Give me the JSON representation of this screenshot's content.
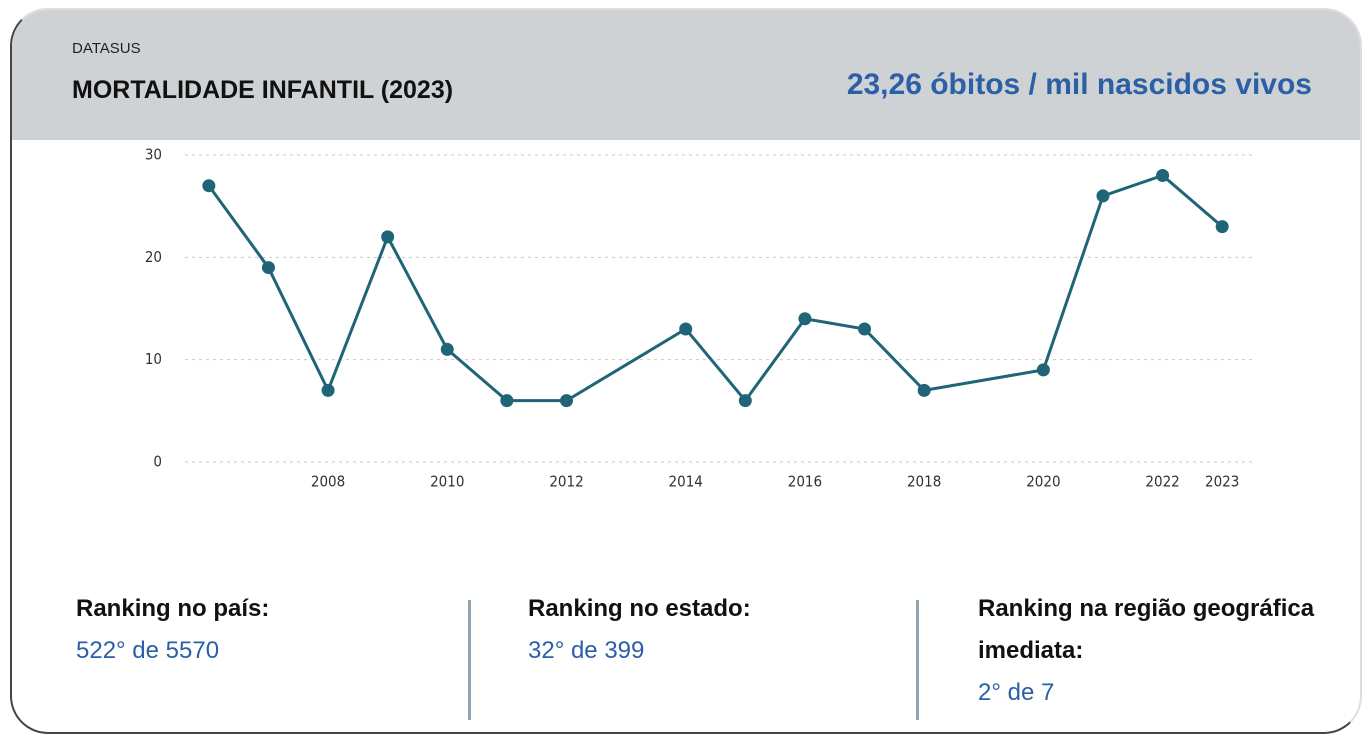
{
  "header": {
    "source": "DATASUS",
    "title": "MORTALIDADE INFANTIL (2023)",
    "headline": "23,26 óbitos / mil nascidos vivos"
  },
  "chart_data": {
    "type": "line",
    "x": [
      2006,
      2007,
      2008,
      2009,
      2010,
      2011,
      2012,
      2014,
      2015,
      2016,
      2017,
      2018,
      2020,
      2021,
      2022,
      2023
    ],
    "series": [
      {
        "name": "Mortalidade infantil",
        "color": "#1f6477",
        "values": [
          27,
          19,
          7,
          22,
          11,
          6,
          6,
          13,
          6,
          14,
          13,
          7,
          9,
          26,
          28,
          23
        ]
      }
    ],
    "xlim": [
      2005.6,
      2023.5
    ],
    "xticks": [
      2008,
      2010,
      2012,
      2014,
      2016,
      2018,
      2020,
      2022,
      2023
    ],
    "ylim": [
      0,
      30
    ],
    "yticks": [
      0,
      10,
      20,
      30
    ],
    "grid": true
  },
  "rankings": [
    {
      "label": "Ranking no país:",
      "value": "522° de 5570"
    },
    {
      "label": "Ranking no estado:",
      "value": "32° de 399"
    },
    {
      "label": "Ranking na região geográfica imediata:",
      "value": "2° de 7"
    }
  ]
}
